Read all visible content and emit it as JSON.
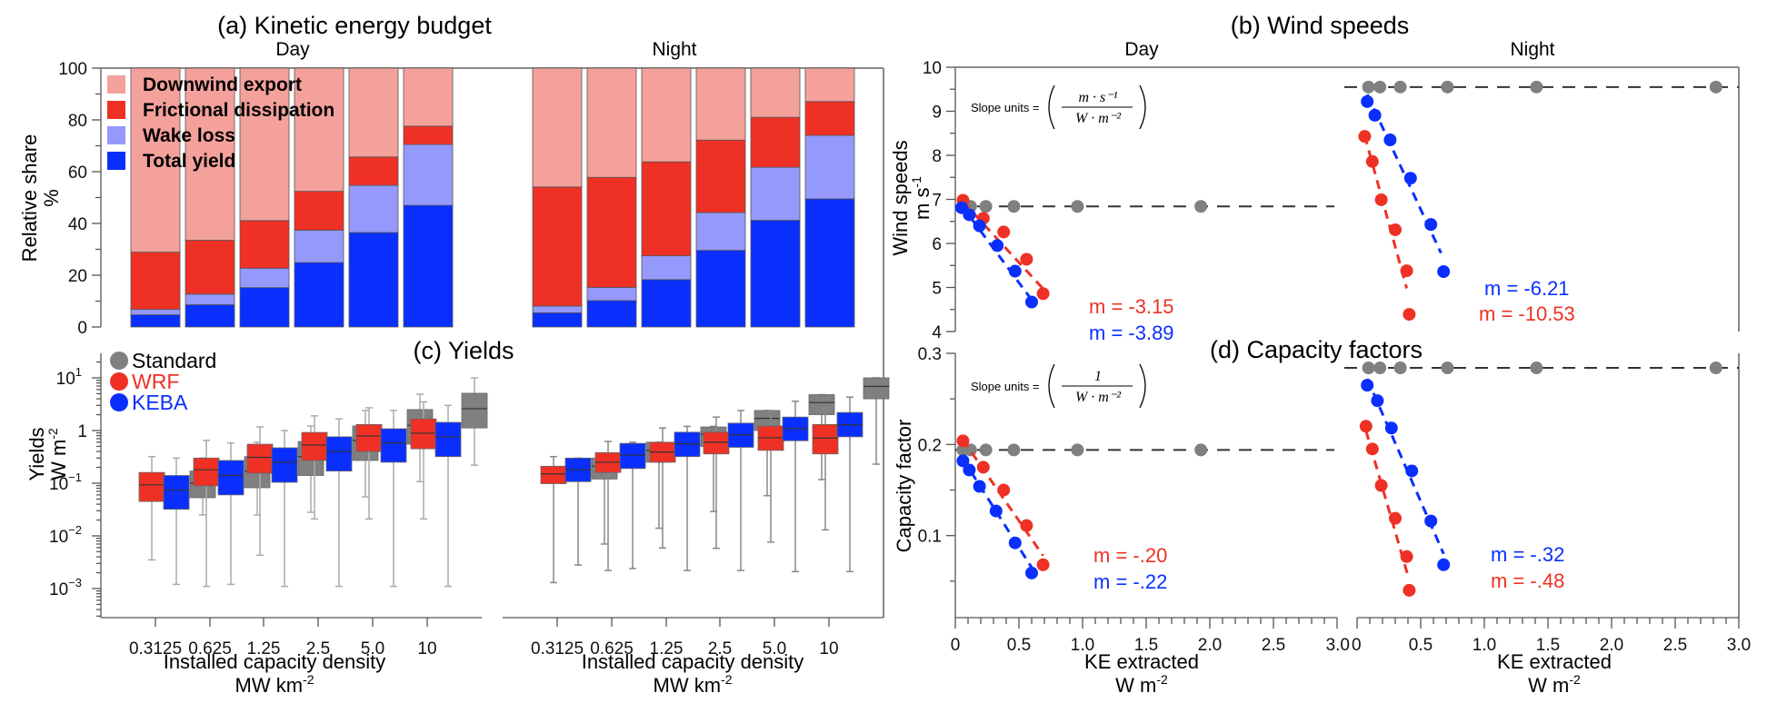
{
  "colors": {
    "downwind": "#f4a19c",
    "friction": "#ee3124",
    "wake": "#9599fb",
    "yield": "#0a2ffd",
    "standard": "#808080",
    "wrf": "#ee3124",
    "keba": "#0a2ffd",
    "whisker": "#aaaaaa",
    "whisker_night": "#888888"
  },
  "chart_data": [
    {
      "id": "a",
      "type": "bar",
      "stacked": true,
      "title": "(a) Kinetic energy budget",
      "panels": [
        "Day",
        "Night"
      ],
      "ylabel": "Relative share",
      "yunit": "%",
      "ylim": [
        0,
        100
      ],
      "yticks": [
        0,
        20,
        40,
        60,
        80,
        100
      ],
      "categories": [
        "0.3125",
        "0.625",
        "1.25",
        "2.5",
        "5.0",
        "10"
      ],
      "legend": [
        "Downwind export",
        "Frictional dissipation",
        "Wake loss",
        "Total yield"
      ],
      "legend_position": "top-left",
      "series": {
        "Day": {
          "Total yield": [
            4.7,
            8.6,
            15.2,
            24.9,
            36.5,
            47.0
          ],
          "Wake loss": [
            2.1,
            4.1,
            7.5,
            12.5,
            18.2,
            23.5
          ],
          "Frictional dissipation": [
            22.1,
            20.8,
            18.4,
            15.0,
            11.0,
            7.1
          ],
          "Downwind export": [
            71.1,
            66.5,
            58.9,
            47.6,
            34.3,
            22.4
          ]
        },
        "Night": {
          "Total yield": [
            5.5,
            10.2,
            18.3,
            29.6,
            41.2,
            49.5
          ],
          "Wake loss": [
            2.6,
            5.1,
            9.2,
            14.6,
            20.5,
            24.5
          ],
          "Frictional dissipation": [
            46.0,
            42.5,
            36.3,
            28.0,
            19.3,
            13.1
          ],
          "Downwind export": [
            45.9,
            42.2,
            36.2,
            27.8,
            19.0,
            12.9
          ]
        }
      }
    },
    {
      "id": "c",
      "type": "box",
      "title": "(c) Yields",
      "panels": [
        "Day",
        "Night"
      ],
      "ylabel": "Yields",
      "yunit": "W m-2",
      "yscale": "log",
      "ylim": [
        0.00028,
        30
      ],
      "yticks": [
        {
          "v": 0.001,
          "base": "10",
          "exp": "−3"
        },
        {
          "v": 0.01,
          "base": "10",
          "exp": "−2"
        },
        {
          "v": 0.1,
          "base": "10",
          "exp": "−1"
        },
        {
          "v": 1,
          "base": "1",
          "exp": ""
        },
        {
          "v": 10,
          "base": "10",
          "exp": "1"
        }
      ],
      "xlabel": "Installed capacity density",
      "xunit": "MW km-2",
      "categories": [
        "0.3125",
        "0.625",
        "1.25",
        "2.5",
        "5.0",
        "10"
      ],
      "legend": [
        "Standard",
        "WRF",
        "KEBA"
      ],
      "legend_position": "top-left",
      "stats_order": [
        "low",
        "q1",
        "median",
        "q3",
        "high"
      ],
      "series": {
        "Day": {
          "WRF": [
            [
              0.0035,
              0.045,
              0.093,
              0.16,
              0.32
            ],
            [
              0.0011,
              0.089,
              0.18,
              0.3,
              0.65
            ],
            [
              0.0043,
              0.155,
              0.31,
              0.55,
              1.17
            ],
            [
              0.021,
              0.27,
              0.53,
              0.92,
              1.9
            ],
            [
              0.021,
              0.4,
              0.79,
              1.3,
              2.7
            ],
            [
              0.021,
              0.45,
              0.89,
              1.66,
              3.5
            ]
          ],
          "KEBA": [
            [
              0.0012,
              0.032,
              0.074,
              0.14,
              0.3
            ],
            [
              0.0012,
              0.06,
              0.14,
              0.27,
              0.58
            ],
            [
              0.0011,
              0.104,
              0.25,
              0.47,
              1.0
            ],
            [
              0.0011,
              0.17,
              0.4,
              0.76,
              1.66
            ],
            [
              0.0011,
              0.25,
              0.58,
              1.08,
              2.4
            ],
            [
              0.0011,
              0.32,
              0.76,
              1.43,
              3.0
            ]
          ],
          "Standard": [
            [
              0.025,
              0.053,
              0.1,
              0.17,
              0.3
            ],
            [
              0.025,
              0.082,
              0.17,
              0.32,
              0.6
            ],
            [
              0.028,
              0.14,
              0.32,
              0.62,
              1.22
            ],
            [
              0.055,
              0.27,
              0.65,
              1.22,
              2.4
            ],
            [
              0.107,
              0.55,
              1.26,
              2.5,
              4.9
            ],
            [
              0.22,
              1.12,
              2.6,
              5.1,
              10
            ]
          ]
        },
        "Night": {
          "WRF": [
            [
              0.0013,
              0.098,
              0.15,
              0.21,
              0.32
            ],
            [
              0.0022,
              0.16,
              0.25,
              0.38,
              0.62
            ],
            [
              0.0059,
              0.25,
              0.39,
              0.6,
              1.12
            ],
            [
              0.0058,
              0.36,
              0.6,
              0.93,
              1.8
            ],
            [
              0.0076,
              0.42,
              0.73,
              1.22,
              2.4
            ],
            [
              0.013,
              0.36,
              0.72,
              1.3,
              2.7
            ]
          ],
          "KEBA": [
            [
              0.0028,
              0.107,
              0.18,
              0.3,
              0.3
            ],
            [
              0.0024,
              0.19,
              0.34,
              0.57,
              0.6
            ],
            [
              0.0022,
              0.32,
              0.56,
              0.93,
              1.2
            ],
            [
              0.0022,
              0.48,
              0.83,
              1.38,
              2.4
            ],
            [
              0.0021,
              0.64,
              1.09,
              1.8,
              3.6
            ],
            [
              0.0021,
              0.76,
              1.28,
              2.2,
              4.3
            ]
          ],
          "Standard": [
            [
              0.007,
              0.12,
              0.21,
              0.3,
              0.3
            ],
            [
              0.014,
              0.25,
              0.42,
              0.6,
              0.6
            ],
            [
              0.029,
              0.5,
              0.85,
              1.17,
              1.2
            ],
            [
              0.058,
              1.0,
              1.7,
              2.4,
              2.4
            ],
            [
              0.117,
              2.0,
              3.4,
              4.8,
              4.8
            ],
            [
              0.23,
              4.0,
              6.9,
              10,
              10
            ]
          ]
        }
      }
    },
    {
      "id": "b",
      "type": "scatter",
      "title": "(b) Wind speeds",
      "panels": [
        "Day",
        "Night"
      ],
      "ylabel": "Wind speeds",
      "yunit": "m s-1",
      "ylim": [
        4,
        10
      ],
      "yticks": [
        4,
        5,
        6,
        7,
        8,
        9,
        10
      ],
      "xlabel": "KE extracted",
      "xunit": "W m-2",
      "xlim": [
        0,
        3.0
      ],
      "slope_units": {
        "prefix": "Slope units =",
        "num": "m · s⁻¹",
        "den": "W · m⁻²"
      },
      "series": {
        "Day": {
          "Standard": {
            "x": [
              0.06,
              0.12,
              0.24,
              0.46,
              0.96,
              1.93
            ],
            "y": [
              6.84,
              6.84,
              6.84,
              6.84,
              6.84,
              6.84
            ]
          },
          "WRF": {
            "x": [
              0.06,
              0.22,
              0.38,
              0.56,
              0.69
            ],
            "y": [
              6.98,
              6.57,
              6.26,
              5.64,
              4.86
            ],
            "slope_label": "m = -3.15",
            "fit_x": [
              0.06,
              0.69
            ],
            "fit_y": [
              6.95,
              4.97
            ]
          },
          "KEBA": {
            "x": [
              0.05,
              0.11,
              0.19,
              0.33,
              0.47,
              0.6
            ],
            "y": [
              6.81,
              6.65,
              6.4,
              5.95,
              5.37,
              4.67
            ],
            "slope_label": "m = -3.89",
            "fit_x": [
              0.05,
              0.6
            ],
            "fit_y": [
              6.86,
              4.72
            ]
          }
        },
        "Night": {
          "Standard": {
            "x": [
              0.09,
              0.18,
              0.34,
              0.71,
              1.41,
              2.82
            ],
            "y": [
              9.55,
              9.55,
              9.55,
              9.55,
              9.55,
              9.55
            ]
          },
          "KEBA": {
            "x": [
              0.08,
              0.14,
              0.26,
              0.42,
              0.58,
              0.68
            ],
            "y": [
              9.22,
              8.91,
              8.35,
              7.48,
              6.43,
              5.36
            ],
            "slope_label": "m = -6.21",
            "fit_x": [
              0.08,
              0.66
            ],
            "fit_y": [
              9.38,
              5.78
            ]
          },
          "WRF": {
            "x": [
              0.06,
              0.12,
              0.19,
              0.3,
              0.39,
              0.41
            ],
            "y": [
              8.43,
              7.86,
              6.99,
              6.31,
              5.38,
              4.39
            ],
            "slope_label": "m = -10.53",
            "fit_x": [
              0.06,
              0.39
            ],
            "fit_y": [
              8.45,
              4.98
            ]
          }
        }
      }
    },
    {
      "id": "d",
      "type": "scatter",
      "title": "(d) Capacity factors",
      "panels": [
        "Day",
        "Night"
      ],
      "ylabel": "Capacity factor",
      "ylim": [
        0.01,
        0.3
      ],
      "yticks": [
        0.1,
        0.2,
        0.3
      ],
      "yticks_minor": [
        0.05,
        0.15,
        0.25
      ],
      "xlabel": "KE extracted",
      "xunit": "W m-2",
      "xlim": [
        0,
        3.0
      ],
      "xticks": [
        "0",
        "0.5",
        "1.0",
        "1.5",
        "2.0",
        "2.5",
        "3.0"
      ],
      "slope_units": {
        "prefix": "Slope units =",
        "num": "1",
        "den": "W · m⁻²"
      },
      "series": {
        "Day": {
          "Standard": {
            "x": [
              0.06,
              0.12,
              0.24,
              0.46,
              0.96,
              1.93
            ],
            "y": [
              0.194,
              0.194,
              0.194,
              0.194,
              0.194,
              0.194
            ]
          },
          "WRF": {
            "x": [
              0.06,
              0.22,
              0.38,
              0.56,
              0.69
            ],
            "y": [
              0.204,
              0.175,
              0.15,
              0.111,
              0.068
            ],
            "slope_label": "m = -.20",
            "fit_x": [
              0.06,
              0.69
            ],
            "fit_y": [
              0.205,
              0.078
            ]
          },
          "KEBA": {
            "x": [
              0.06,
              0.11,
              0.19,
              0.32,
              0.47,
              0.6
            ],
            "y": [
              0.182,
              0.172,
              0.154,
              0.127,
              0.092,
              0.059
            ],
            "slope_label": "m = -.22",
            "fit_x": [
              0.06,
              0.6
            ],
            "fit_y": [
              0.184,
              0.065
            ]
          }
        },
        "Night": {
          "Standard": {
            "x": [
              0.09,
              0.18,
              0.34,
              0.71,
              1.41,
              2.82
            ],
            "y": [
              0.284,
              0.284,
              0.284,
              0.284,
              0.284,
              0.284
            ]
          },
          "KEBA": {
            "x": [
              0.08,
              0.16,
              0.27,
              0.43,
              0.58,
              0.68
            ],
            "y": [
              0.265,
              0.248,
              0.218,
              0.171,
              0.116,
              0.068
            ],
            "slope_label": "m = -.32",
            "fit_x": [
              0.08,
              0.68
            ],
            "fit_y": [
              0.272,
              0.08
            ]
          },
          "WRF": {
            "x": [
              0.07,
              0.12,
              0.19,
              0.3,
              0.39,
              0.41
            ],
            "y": [
              0.22,
              0.195,
              0.155,
              0.119,
              0.077,
              0.04
            ],
            "slope_label": "m = -.48",
            "fit_x": [
              0.07,
              0.4
            ],
            "fit_y": [
              0.215,
              0.056
            ]
          }
        }
      }
    }
  ],
  "labels": {
    "day": "Day",
    "night": "Night",
    "percent": "%"
  }
}
